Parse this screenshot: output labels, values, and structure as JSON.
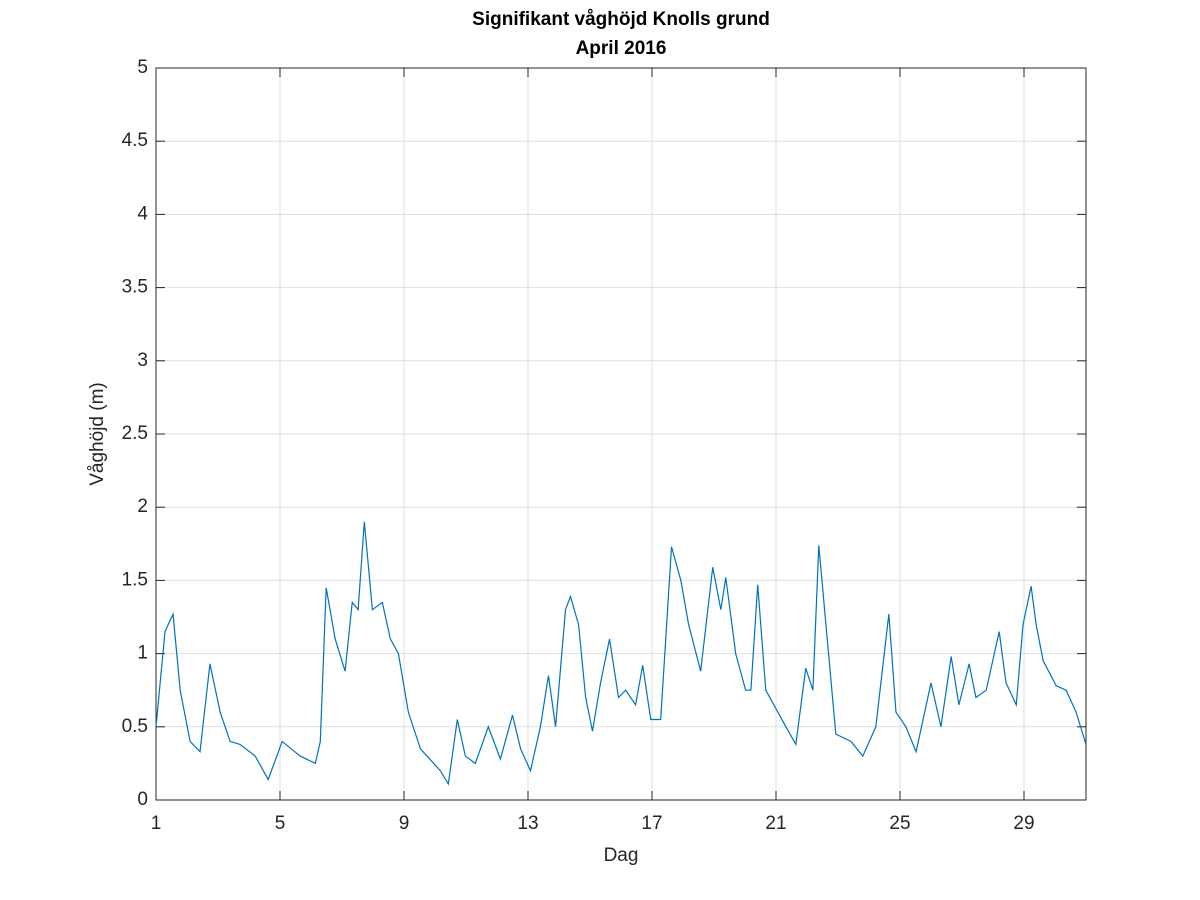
{
  "chart_data": {
    "type": "line",
    "title": "Signifikant våghöjd Knolls grund",
    "subtitle": "April 2016",
    "x_label": "Dag",
    "y_label": "Våghöjd (m)",
    "xlim": [
      1,
      31
    ],
    "ylim": [
      0,
      5
    ],
    "xticks": [
      1,
      5,
      9,
      13,
      17,
      21,
      25,
      29
    ],
    "yticks": [
      0,
      0.5,
      1,
      1.5,
      2,
      2.5,
      3,
      3.5,
      4,
      4.5,
      5
    ],
    "grid": true,
    "series": [
      {
        "color": "#0072bd",
        "x": [
          1.0,
          1.29,
          1.55,
          1.78,
          2.1,
          2.42,
          2.74,
          3.07,
          3.39,
          3.71,
          4.2,
          4.62,
          5.07,
          5.65,
          6.14,
          6.3,
          6.49,
          6.78,
          7.1,
          7.33,
          7.52,
          7.72,
          7.98,
          8.3,
          8.56,
          8.82,
          9.14,
          9.53,
          10.17,
          10.43,
          10.72,
          10.98,
          11.3,
          11.72,
          12.11,
          12.5,
          12.76,
          13.08,
          13.4,
          13.66,
          13.89,
          14.21,
          14.37,
          14.63,
          14.86,
          15.08,
          15.34,
          15.63,
          15.92,
          16.15,
          16.47,
          16.7,
          16.96,
          17.28,
          17.63,
          17.93,
          18.18,
          18.57,
          18.96,
          19.22,
          19.38,
          19.7,
          20.02,
          20.19,
          20.41,
          20.67,
          20.93,
          21.32,
          21.64,
          21.96,
          22.19,
          22.38,
          22.61,
          22.93,
          23.42,
          23.8,
          24.22,
          24.64,
          24.87,
          25.19,
          25.52,
          26.0,
          26.32,
          26.65,
          26.9,
          27.23,
          27.45,
          27.78,
          28.2,
          28.42,
          28.75,
          28.97,
          29.23,
          29.39,
          29.62,
          30.04,
          30.36,
          30.68,
          31.0
        ],
        "values": [
          0.5,
          1.15,
          1.27,
          0.75,
          0.4,
          0.33,
          0.93,
          0.6,
          0.4,
          0.38,
          0.3,
          0.14,
          0.4,
          0.3,
          0.25,
          0.4,
          1.45,
          1.1,
          0.88,
          1.35,
          1.3,
          1.9,
          1.3,
          1.35,
          1.1,
          1.0,
          0.6,
          0.35,
          0.2,
          0.11,
          0.55,
          0.3,
          0.25,
          0.5,
          0.28,
          0.58,
          0.35,
          0.2,
          0.5,
          0.85,
          0.5,
          1.3,
          1.39,
          1.2,
          0.7,
          0.47,
          0.8,
          1.1,
          0.7,
          0.75,
          0.65,
          0.92,
          0.55,
          0.55,
          1.73,
          1.5,
          1.2,
          0.88,
          1.59,
          1.3,
          1.52,
          1.0,
          0.75,
          0.75,
          1.47,
          0.75,
          0.65,
          0.5,
          0.38,
          0.9,
          0.75,
          1.74,
          1.2,
          0.45,
          0.4,
          0.3,
          0.5,
          1.27,
          0.6,
          0.5,
          0.33,
          0.8,
          0.5,
          0.98,
          0.65,
          0.93,
          0.7,
          0.75,
          1.15,
          0.8,
          0.65,
          1.2,
          1.46,
          1.2,
          0.95,
          0.78,
          0.75,
          0.6,
          0.38
        ]
      }
    ]
  }
}
